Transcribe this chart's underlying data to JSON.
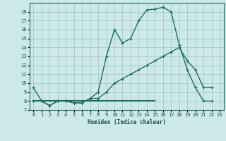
{
  "xlabel": "Humidex (Indice chaleur)",
  "bg_color": "#cce8e8",
  "grid_color": "#aacece",
  "line_color": "#1a6e64",
  "xlim": [
    -0.5,
    23.5
  ],
  "ylim": [
    7,
    19
  ],
  "yticks": [
    7,
    8,
    9,
    10,
    11,
    12,
    13,
    14,
    15,
    16,
    17,
    18
  ],
  "xticks": [
    0,
    1,
    2,
    3,
    4,
    5,
    6,
    7,
    8,
    9,
    10,
    11,
    12,
    13,
    14,
    15,
    16,
    17,
    18,
    19,
    20,
    21,
    22,
    23
  ],
  "line1_x": [
    0,
    1,
    2,
    3,
    4,
    5,
    6,
    7,
    8,
    9,
    10,
    11,
    12,
    13,
    14,
    15,
    16,
    17,
    18,
    19,
    20,
    21,
    22
  ],
  "line1_y": [
    9.5,
    8.0,
    7.5,
    8.0,
    8.0,
    7.8,
    7.8,
    8.3,
    9.0,
    13.0,
    16.0,
    14.5,
    15.0,
    17.0,
    18.2,
    18.3,
    18.5,
    18.0,
    14.3,
    11.5,
    9.5,
    8.0,
    8.0
  ],
  "line2_x": [
    0,
    1,
    2,
    3,
    4,
    5,
    6,
    7,
    8,
    9,
    10,
    11,
    12,
    13,
    14,
    15,
    16,
    17,
    18,
    19,
    20,
    21,
    22
  ],
  "line2_y": [
    8.0,
    8.0,
    7.5,
    8.0,
    8.0,
    7.8,
    7.8,
    8.3,
    8.3,
    9.0,
    10.0,
    10.5,
    11.0,
    11.5,
    12.0,
    12.5,
    13.0,
    13.5,
    14.0,
    12.5,
    11.5,
    9.5,
    9.5
  ],
  "line3_x": [
    0,
    15
  ],
  "line3_y": [
    8.0,
    8.0
  ]
}
